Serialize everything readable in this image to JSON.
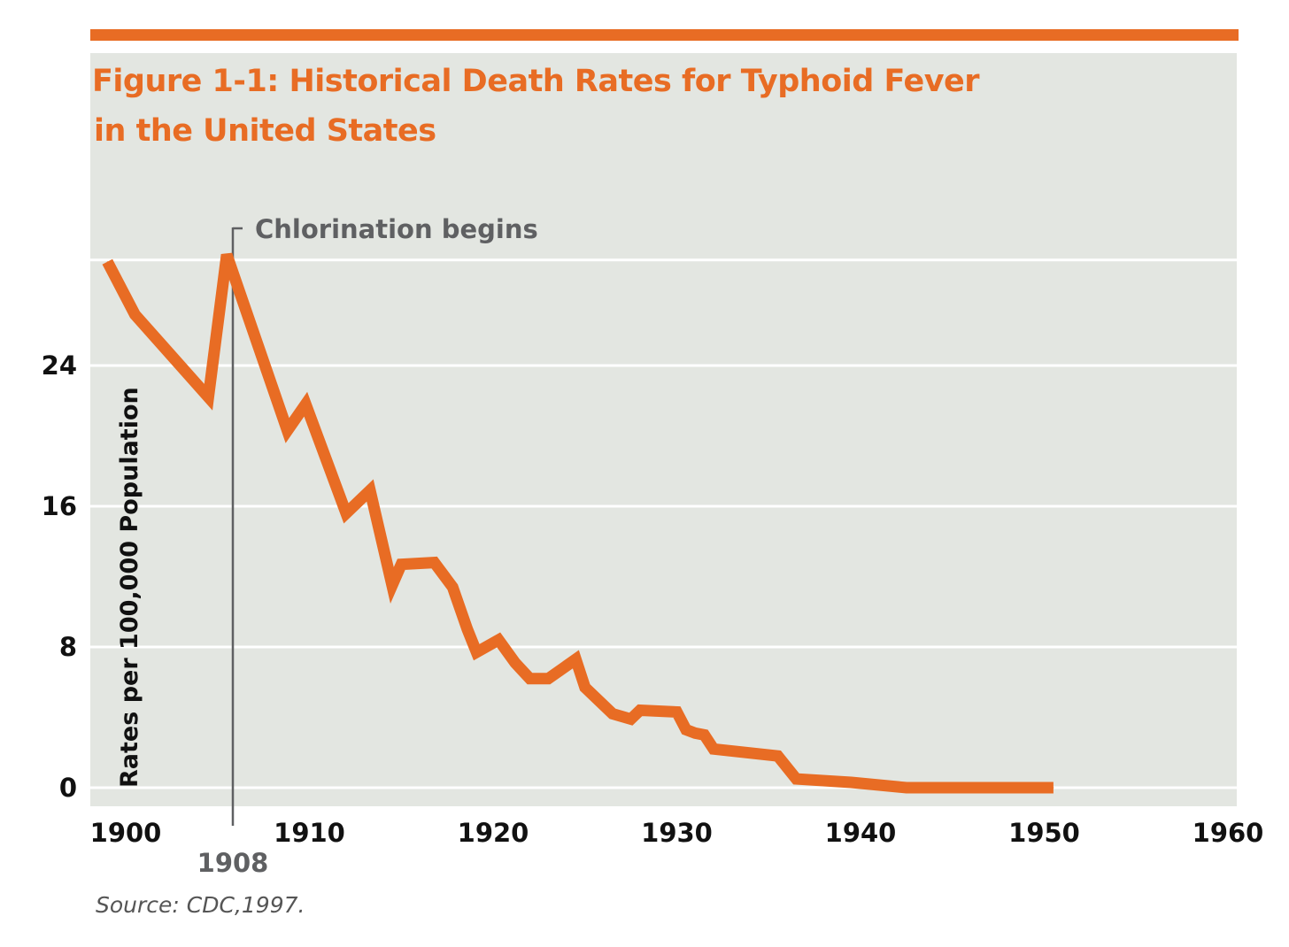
{
  "colors": {
    "accent": "#e86c24",
    "panel": "#e3e6e1",
    "grid": "#ffffff",
    "annotation": "#5f6062",
    "text": "#111111"
  },
  "figure": {
    "title_line1": "Figure 1-1: Historical Death Rates for Typhoid Fever",
    "title_line2": "in the United States",
    "source": "Source: CDC,1997."
  },
  "chart_data": {
    "type": "line",
    "title": "Figure 1-1: Historical Death Rates for Typhoid Fever in the United States",
    "xlabel": "",
    "ylabel": "Rates per 100,000 Population",
    "xlim": [
      1900,
      1960
    ],
    "ylim": [
      0,
      30
    ],
    "x_ticks": [
      1900,
      1910,
      1920,
      1930,
      1940,
      1950,
      1960
    ],
    "y_ticks": [
      0,
      8,
      16,
      24
    ],
    "grid": "horizontal",
    "series": [
      {
        "name": "Typhoid fever death rate",
        "x": [
          1899,
          1900.5,
          1904.5,
          1905.5,
          1908.8,
          1909.8,
          1912.0,
          1913.3,
          1914.5,
          1915.0,
          1916.8,
          1917.8,
          1918.6,
          1919.1,
          1920.3,
          1921.2,
          1922.0,
          1923.0,
          1924.5,
          1925.0,
          1926.5,
          1927.5,
          1928.0,
          1930.0,
          1930.5,
          1931.0,
          1931.5,
          1932.0,
          1935.5,
          1936.5,
          1939.5,
          1942.5,
          1950.5
        ],
        "values": [
          29.9,
          26.9,
          22.2,
          30.3,
          20.3,
          21.8,
          15.6,
          16.9,
          11.5,
          12.7,
          12.8,
          11.4,
          9.0,
          7.7,
          8.4,
          7.1,
          6.2,
          6.2,
          7.3,
          5.7,
          4.2,
          3.9,
          4.4,
          4.3,
          3.3,
          3.1,
          3.0,
          2.2,
          1.8,
          0.5,
          0.3,
          0.0,
          0.0
        ],
        "color": "#e86c24"
      }
    ],
    "annotations": [
      {
        "text": "Chlorination begins",
        "x": 1908,
        "label": "1908"
      }
    ]
  }
}
